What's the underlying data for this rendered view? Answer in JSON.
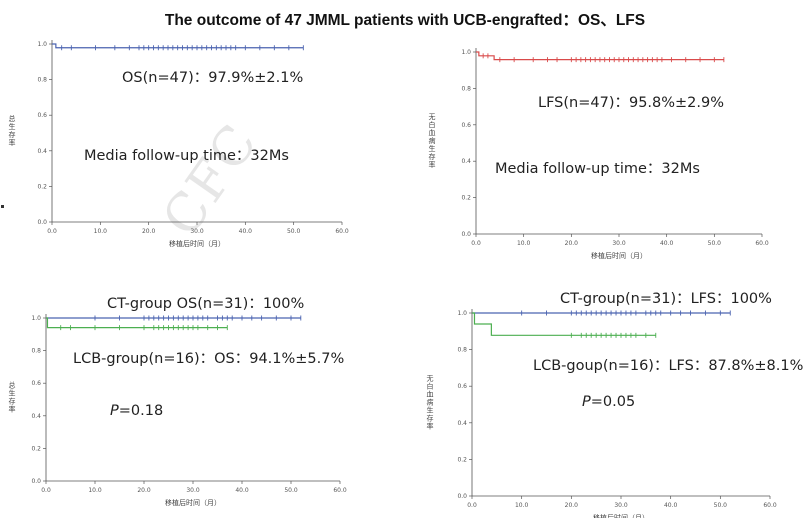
{
  "title": "The outcome of 47 JMML patients with UCB-engrafted：OS、LFS",
  "watermark": "CFC",
  "chart_data": [
    {
      "type": "line",
      "subtype": "kaplan-meier",
      "xlabel": "移植后时间（月）",
      "ylabel": "总生存率",
      "xlim": [
        0,
        60
      ],
      "ylim": [
        0,
        1.0
      ],
      "xticks": [
        "0.0",
        "10.0",
        "20.0",
        "30.0",
        "40.0",
        "50.0",
        "60.0"
      ],
      "yticks": [
        "0.0",
        "0.2",
        "0.4",
        "0.6",
        "0.8",
        "1.0"
      ],
      "series": [
        {
          "color": "#4b63b0",
          "x": [
            0,
            0.8,
            0.8,
            52
          ],
          "y": [
            1.0,
            1.0,
            0.979,
            0.979
          ],
          "censor_x": [
            2,
            4,
            9,
            13,
            16,
            18,
            19,
            20,
            21,
            22,
            23,
            24,
            25,
            26,
            27,
            28,
            29,
            30,
            31,
            32,
            33,
            34,
            35,
            36,
            37,
            38,
            40,
            43,
            46,
            49,
            52
          ]
        }
      ],
      "annotations": [
        "OS(n=47)：97.9%±2.1%",
        "Media follow-up time：32Ms"
      ]
    },
    {
      "type": "line",
      "subtype": "kaplan-meier",
      "xlabel": "移植后时间（月）",
      "ylabel": "无白血病生存率",
      "xlim": [
        0,
        60
      ],
      "ylim": [
        0,
        1.0
      ],
      "xticks": [
        "0.0",
        "10.0",
        "20.0",
        "30.0",
        "40.0",
        "50.0",
        "60.0"
      ],
      "yticks": [
        "0.0",
        "0.2",
        "0.4",
        "0.6",
        "0.8",
        "1.0"
      ],
      "series": [
        {
          "color": "#d94a4a",
          "x": [
            0,
            0.6,
            0.6,
            3.8,
            3.8,
            52
          ],
          "y": [
            1.0,
            1.0,
            0.979,
            0.979,
            0.958,
            0.958
          ],
          "censor_x": [
            1.5,
            2.5,
            5,
            8,
            12,
            15,
            17,
            20,
            21,
            22,
            23,
            24,
            25,
            26,
            27,
            28,
            29,
            30,
            31,
            32,
            33,
            34,
            35,
            36,
            37,
            38,
            39,
            41,
            44,
            47,
            50,
            52
          ]
        }
      ],
      "annotations": [
        "LFS(n=47)：95.8%±2.9%",
        "Media follow-up time：32Ms"
      ]
    },
    {
      "type": "line",
      "subtype": "kaplan-meier",
      "xlabel": "移植后时间（月）",
      "ylabel": "总生存率",
      "xlim": [
        0,
        60
      ],
      "ylim": [
        0,
        1.0
      ],
      "xticks": [
        "0.0",
        "10.0",
        "20.0",
        "30.0",
        "40.0",
        "50.0",
        "60.0"
      ],
      "yticks": [
        "0.0",
        "0.2",
        "0.4",
        "0.6",
        "0.8",
        "1.0"
      ],
      "series": [
        {
          "color": "#4b63b0",
          "x": [
            0,
            52
          ],
          "y": [
            1.0,
            1.0
          ],
          "censor_x": [
            10,
            15,
            20,
            21,
            22,
            23,
            24,
            25,
            26,
            27,
            28,
            29,
            30,
            31,
            32,
            33,
            35,
            36,
            37,
            38,
            40,
            42,
            44,
            47,
            50,
            52
          ]
        },
        {
          "color": "#4caf50",
          "x": [
            0,
            0.3,
            0.3,
            37
          ],
          "y": [
            1.0,
            1.0,
            0.941,
            0.941
          ],
          "censor_x": [
            3,
            5,
            10,
            15,
            20,
            22,
            23,
            24,
            25,
            26,
            27,
            28,
            29,
            30,
            31,
            33,
            35,
            37
          ]
        }
      ],
      "annotations": [
        "CT-group OS(n=31)：100%",
        "LCB-group(n=16)：OS：94.1%±5.7%",
        "P=0.18"
      ]
    },
    {
      "type": "line",
      "subtype": "kaplan-meier",
      "xlabel": "移植后时间（月）",
      "ylabel": "无白血病生存率",
      "xlim": [
        0,
        60
      ],
      "ylim": [
        0,
        1.0
      ],
      "xticks": [
        "0.0",
        "10.0",
        "20.0",
        "30.0",
        "40.0",
        "50.0",
        "60.0"
      ],
      "yticks": [
        "0.0",
        "0.2",
        "0.4",
        "0.6",
        "0.8",
        "1.0"
      ],
      "series": [
        {
          "color": "#4b63b0",
          "x": [
            0,
            52
          ],
          "y": [
            1.0,
            1.0
          ],
          "censor_x": [
            10,
            15,
            20,
            21,
            22,
            23,
            24,
            25,
            26,
            27,
            28,
            29,
            30,
            31,
            32,
            33,
            35,
            36,
            37,
            38,
            40,
            42,
            44,
            47,
            50,
            52
          ]
        },
        {
          "color": "#4caf50",
          "x": [
            0,
            0.5,
            0.5,
            3.9,
            3.9,
            37
          ],
          "y": [
            1.0,
            1.0,
            0.94,
            0.94,
            0.878,
            0.878
          ],
          "censor_x": [
            20,
            22,
            23,
            24,
            25,
            26,
            27,
            28,
            29,
            30,
            31,
            32,
            33,
            35,
            37
          ]
        }
      ],
      "annotations": [
        "CT-group(n=31)：LFS：100%",
        "LCB-goup(n=16)：LFS：87.8%±8.1%",
        "P=0.05"
      ]
    }
  ]
}
